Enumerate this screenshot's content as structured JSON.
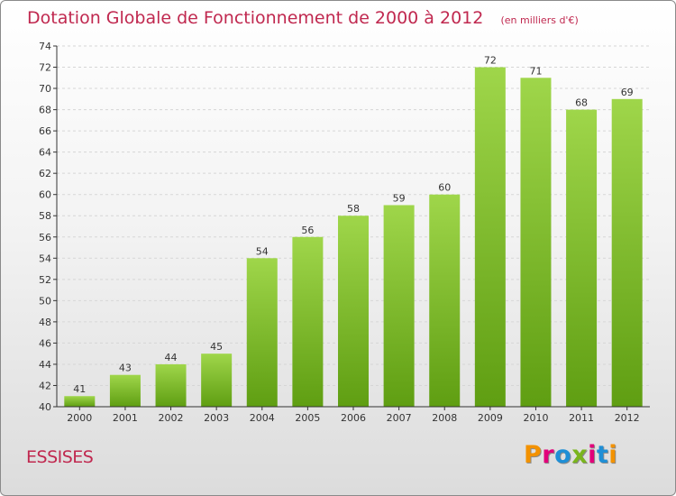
{
  "header": {
    "title": "Dotation Globale de Fonctionnement de 2000 à 2012",
    "unit": "(en milliers d'€)"
  },
  "footer": {
    "commune": "ESSISES",
    "logo": "Proxiti",
    "logo_colors": [
      "#f39200",
      "#e2007a",
      "#1f8fd6",
      "#7ab51d",
      "#e2007a",
      "#1f8fd6",
      "#f39200"
    ]
  },
  "colors": {
    "title": "#c0284f",
    "bar_light": "#9fd64a",
    "bar_dark": "#5f9e12",
    "grid": "#d6d6d6",
    "axis": "#333333"
  },
  "chart_data": {
    "type": "bar",
    "title": "Dotation Globale de Fonctionnement de 2000 à 2012",
    "subtitle": "(en milliers d'€)",
    "categories": [
      "2000",
      "2001",
      "2002",
      "2003",
      "2004",
      "2005",
      "2006",
      "2007",
      "2008",
      "2009",
      "2010",
      "2011",
      "2012"
    ],
    "values": [
      41,
      43,
      44,
      45,
      54,
      56,
      58,
      59,
      60,
      72,
      71,
      68,
      69
    ],
    "ylim": [
      40,
      74
    ],
    "yticks": [
      40,
      42,
      44,
      46,
      48,
      50,
      52,
      54,
      56,
      58,
      60,
      62,
      64,
      66,
      68,
      70,
      72,
      74
    ],
    "grid": true,
    "data_labels": true
  }
}
